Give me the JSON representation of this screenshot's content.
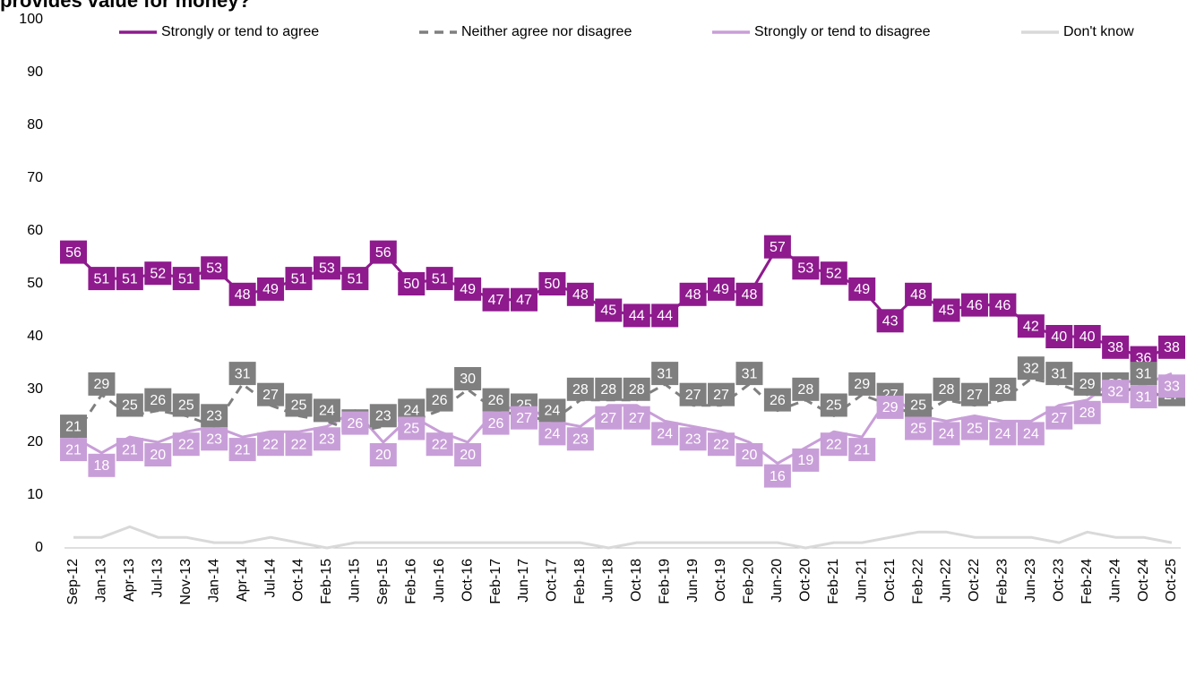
{
  "chart_data": {
    "type": "line",
    "title": "provides value for money?",
    "categories": [
      "Sep-12",
      "Jan-13",
      "Apr-13",
      "Jul-13",
      "Nov-13",
      "Jan-14",
      "Apr-14",
      "Jul-14",
      "Oct-14",
      "Feb-15",
      "Jun-15",
      "Sep-15",
      "Feb-16",
      "Jun-16",
      "Oct-16",
      "Feb-17",
      "Jun-17",
      "Oct-17",
      "Feb-18",
      "Jun-18",
      "Oct-18",
      "Feb-19",
      "Jun-19",
      "Oct-19",
      "Feb-20",
      "Jun-20",
      "Oct-20",
      "Feb-21",
      "Jun-21",
      "Oct-21",
      "Feb-22",
      "Jun-22",
      "Oct-22",
      "Feb-23",
      "Jun-23",
      "Oct-23",
      "Feb-24",
      "Jun-24",
      "Oct-24",
      "Oct-25"
    ],
    "series": [
      {
        "name": "Strongly or tend to agree",
        "color": "#8e1a8e",
        "line_style": "solid",
        "data_labels": true,
        "values": [
          56,
          51,
          51,
          52,
          51,
          53,
          48,
          49,
          51,
          53,
          51,
          56,
          50,
          51,
          49,
          47,
          47,
          50,
          48,
          45,
          44,
          44,
          48,
          49,
          48,
          57,
          53,
          52,
          49,
          43,
          48,
          45,
          46,
          46,
          42,
          40,
          40,
          38,
          36,
          38
        ]
      },
      {
        "name": "Neither agree nor disagree",
        "color": "#7f7f7f",
        "line_style": "dashed",
        "data_labels": true,
        "values": [
          21,
          29,
          25,
          26,
          25,
          23,
          31,
          27,
          25,
          24,
          22,
          23,
          24,
          26,
          30,
          26,
          25,
          24,
          28,
          28,
          28,
          31,
          27,
          27,
          31,
          26,
          28,
          25,
          29,
          27,
          25,
          28,
          27,
          28,
          32,
          31,
          29,
          29,
          31,
          27
        ]
      },
      {
        "name": "Strongly or tend to disagree",
        "color": "#c89ed8",
        "line_style": "solid",
        "data_labels": true,
        "values": [
          21,
          18,
          21,
          20,
          22,
          23,
          21,
          22,
          22,
          23,
          26,
          20,
          25,
          22,
          20,
          26,
          27,
          24,
          23,
          27,
          27,
          24,
          23,
          22,
          20,
          16,
          19,
          22,
          21,
          29,
          25,
          24,
          25,
          24,
          24,
          27,
          28,
          32,
          31,
          33
        ]
      },
      {
        "name": "Don't know",
        "color": "#d9d9d9",
        "line_style": "solid",
        "data_labels": false,
        "values": [
          2,
          2,
          4,
          2,
          2,
          1,
          1,
          2,
          1,
          0,
          1,
          1,
          1,
          1,
          1,
          1,
          1,
          1,
          1,
          0,
          1,
          1,
          1,
          1,
          1,
          1,
          0,
          1,
          1,
          2,
          3,
          3,
          2,
          2,
          2,
          1,
          3,
          2,
          2,
          1
        ]
      }
    ],
    "ylim": [
      0,
      100
    ],
    "yticks": [
      0,
      10,
      20,
      30,
      40,
      50,
      60,
      70,
      80,
      90,
      100
    ],
    "grid": false,
    "legend": "top"
  }
}
